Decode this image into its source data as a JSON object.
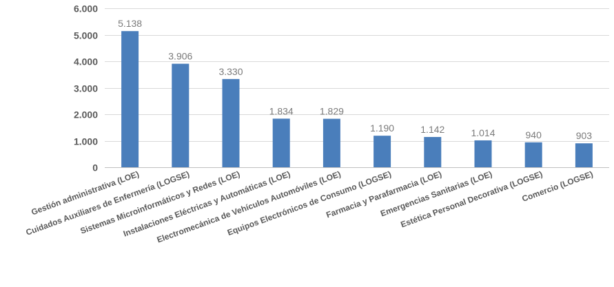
{
  "chart_data": {
    "type": "bar",
    "categories": [
      "Gestión administrativa (LOE)",
      "Cuidados Auxiliares de Enfermería (LOGSE)",
      "Sistemas Microinformáticos y Redes (LOE)",
      "Instalaciones Eléctricas y Automáticas (LOE)",
      "Electromecánica de Vehículos Automóviles (LOE)",
      "Equipos Electrónicos de Consumo (LOGSE)",
      "Farmacia y Parafarmacia (LOE)",
      "Emergencias Sanitarias (LOE)",
      "Estética Personal Decorativa (LOGSE)",
      "Comercio (LOGSE)"
    ],
    "values": [
      5138,
      3906,
      3330,
      1834,
      1829,
      1190,
      1142,
      1014,
      940,
      903
    ],
    "value_labels": [
      "5.138",
      "3.906",
      "3.330",
      "1.834",
      "1.829",
      "1.190",
      "1.142",
      "1.014",
      "940",
      "903"
    ],
    "yticks": [
      0,
      1000,
      2000,
      3000,
      4000,
      5000,
      6000
    ],
    "ytick_labels": [
      "0",
      "1.000",
      "2.000",
      "3.000",
      "4.000",
      "5.000",
      "6.000"
    ],
    "ylim": [
      0,
      6000
    ],
    "title": "",
    "xlabel": "",
    "ylabel": "",
    "grid": true,
    "legend": "none",
    "bar_color": "#4a7ebb"
  }
}
